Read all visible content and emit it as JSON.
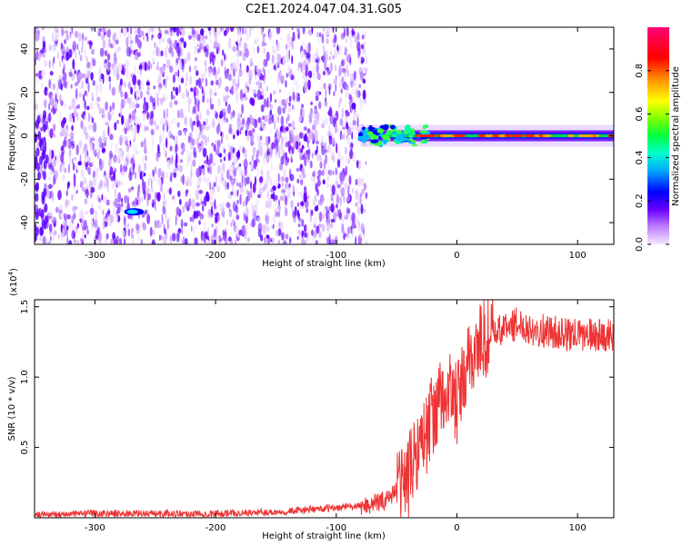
{
  "figure": {
    "title": "C2E1.2024.047.04.31.G05"
  },
  "chart_data": [
    {
      "type": "heatmap",
      "xlabel": "Height of straight line (km)",
      "ylabel": "Frequency (Hz)",
      "xlim": [
        -350,
        130
      ],
      "ylim": [
        -50,
        50
      ],
      "xticks": [
        -300,
        -200,
        -100,
        0,
        100
      ],
      "yticks": [
        -40,
        -20,
        0,
        20,
        40
      ],
      "colorbar": {
        "label": "Normalized spectral amplitude",
        "range": [
          0.0,
          1.0
        ],
        "ticks": [
          0.0,
          0.2,
          0.4,
          0.6,
          0.8
        ],
        "colormap": [
          "#ffffff",
          "#b080ff",
          "#6a00ff",
          "#0000ff",
          "#00c0ff",
          "#00ff80",
          "#80ff00",
          "#ffff00",
          "#ff8000",
          "#ff0000",
          "#ff0080"
        ]
      },
      "features": [
        {
          "x_range": [
            -350,
            -75
          ],
          "y_range": [
            -50,
            50
          ],
          "amplitude": 0.1
        },
        {
          "x_range": [
            -80,
            130
          ],
          "y_center": 0,
          "amplitude": 0.5
        },
        {
          "x_range": [
            -275,
            -260
          ],
          "y_center": -35,
          "amplitude": 0.3
        },
        {
          "x_range": [
            -30,
            130
          ],
          "y_center": 0,
          "amplitude": 0.9
        }
      ]
    },
    {
      "type": "line",
      "xlabel": "Height of straight line (km)",
      "ylabel": "SNR (10 * v/v)",
      "multiplier": "(x10",
      "multiplier_exp": "4",
      "multiplier_close": ")",
      "xlim": [
        -350,
        130
      ],
      "ylim": [
        0,
        1.55
      ],
      "xticks": [
        -300,
        -200,
        -100,
        0,
        100
      ],
      "yticks": [
        "0.5",
        "1.0",
        "1.5"
      ],
      "color": "#ee3333",
      "series": [
        {
          "x": [
            -350,
            -300,
            -250,
            -200,
            -150,
            -120,
            -100,
            -90,
            -80,
            -60,
            -50,
            -40,
            -35,
            -30,
            -25,
            -20,
            -15,
            -10,
            -5,
            0,
            5,
            10,
            15,
            20,
            25,
            30,
            40,
            50,
            60,
            70,
            80,
            90,
            100,
            110,
            120,
            130
          ],
          "y": [
            0.02,
            0.03,
            0.03,
            0.03,
            0.04,
            0.06,
            0.07,
            0.08,
            0.08,
            0.12,
            0.2,
            0.3,
            0.45,
            0.55,
            0.6,
            0.75,
            0.8,
            0.85,
            0.9,
            0.8,
            0.95,
            1.1,
            1.2,
            1.25,
            1.28,
            1.3,
            1.35,
            1.38,
            1.35,
            1.33,
            1.32,
            1.3,
            1.3,
            1.3,
            1.3,
            1.3
          ]
        }
      ]
    }
  ]
}
